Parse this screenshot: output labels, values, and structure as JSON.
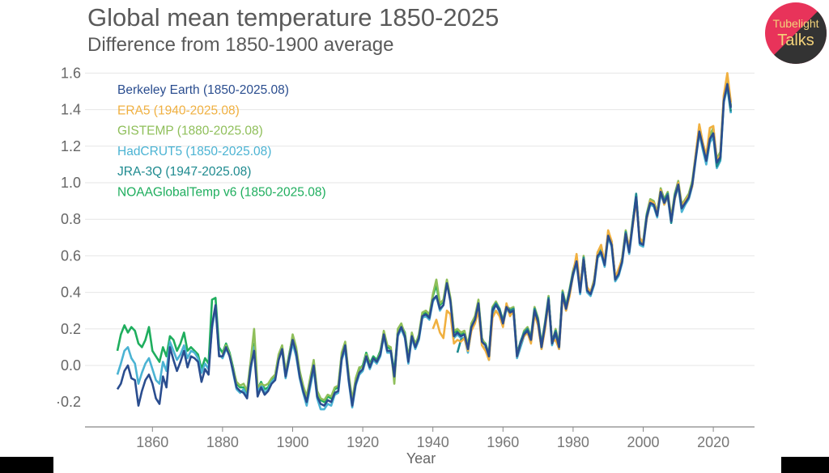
{
  "logo": {
    "line1": "Tubelight",
    "line2": "Talks",
    "pink": "#e8335a",
    "dark": "#333333",
    "text": "#f3d27a"
  },
  "chart_data": {
    "type": "line",
    "title": "Global mean temperature 1850-2025",
    "subtitle": "Difference from 1850-1900 average",
    "xlabel": "Year",
    "ylabel": "",
    "xlim": [
      1850,
      2025
    ],
    "ylim": [
      -0.2,
      1.6
    ],
    "xticks": [
      1860,
      1880,
      1900,
      1920,
      1940,
      1960,
      1980,
      2000,
      2020
    ],
    "xtick_labels": [
      "1860",
      "1880",
      "1900",
      "1920",
      "1940",
      "1960",
      "1980",
      "2000",
      "2020"
    ],
    "yticks": [
      1.6,
      1.4,
      1.2,
      1.0,
      0.8,
      0.6,
      0.4,
      0.2,
      0.0,
      -0.2
    ],
    "ytick_labels": [
      "1.6",
      "1.4",
      "1.2",
      "1.0",
      "0.8",
      "0.6",
      "0.4",
      "0.2",
      "0.0",
      "·0.2"
    ],
    "grid": true,
    "legend_placement": "top-left",
    "series": [
      {
        "name": "NOAAGlobalTemp v6 (1850-2025.08)",
        "color": "#1fae5e",
        "start": 1850,
        "values": [
          0.08,
          0.17,
          0.22,
          0.18,
          0.21,
          0.19,
          0.12,
          0.1,
          0.14,
          0.21,
          0.08,
          0.05,
          0.02,
          0.1,
          0.05,
          0.16,
          0.14,
          0.08,
          0.12,
          0.18,
          0.08,
          0.1,
          0.08,
          0.06,
          -0.02,
          0.04,
          0.01,
          0.36,
          0.37,
          0.1,
          0.07,
          0.12,
          0.07,
          -0.01,
          -0.1,
          -0.12,
          -0.12,
          -0.15,
          0.01,
          0.12,
          -0.13,
          -0.09,
          -0.13,
          -0.12,
          -0.08,
          -0.06,
          0.05,
          0.1,
          -0.04,
          0.06,
          0.16,
          0.09,
          -0.04,
          -0.12,
          -0.18,
          -0.08,
          0.02,
          -0.15,
          -0.19,
          -0.2,
          -0.17,
          -0.18,
          -0.13,
          -0.12,
          0.06,
          0.12,
          -0.06,
          -0.2,
          -0.08,
          -0.02,
          0.0,
          0.07,
          0.01,
          0.05,
          0.03,
          0.08,
          0.18,
          0.1,
          0.09,
          -0.04,
          0.19,
          0.22,
          0.18,
          0.04,
          0.17,
          0.12,
          0.16,
          0.28,
          0.29,
          0.27,
          0.38,
          0.44,
          0.33,
          0.35,
          0.46,
          0.36,
          0.18,
          0.19,
          0.17,
          0.18,
          0.1,
          0.22,
          0.26,
          0.35,
          0.14,
          0.12,
          0.06,
          0.31,
          0.34,
          0.31,
          0.24,
          0.33,
          0.3,
          0.31,
          0.06,
          0.13,
          0.18,
          0.2,
          0.15,
          0.31,
          0.25,
          0.11,
          0.23,
          0.37,
          0.13,
          0.19,
          0.11,
          0.4,
          0.32,
          0.41,
          0.51,
          0.58,
          0.41,
          0.59,
          0.42,
          0.4,
          0.46,
          0.61,
          0.63,
          0.56,
          0.72,
          0.67,
          0.48,
          0.51,
          0.58,
          0.73,
          0.63,
          0.78,
          0.93,
          0.68,
          0.67,
          0.82,
          0.9,
          0.89,
          0.83,
          0.96,
          0.9,
          0.94,
          0.8,
          0.93,
          1.0,
          0.87,
          0.9,
          0.93,
          1.0,
          1.15,
          1.29,
          1.21,
          1.13,
          1.25,
          1.28,
          1.12,
          1.15,
          1.46,
          1.55,
          1.42
        ]
      },
      {
        "name": "HadCRUT5 (1850-2025.08)",
        "color": "#4bb3d3",
        "start": 1850,
        "values": [
          -0.05,
          0.01,
          0.08,
          0.1,
          0.04,
          0.01,
          -0.1,
          -0.04,
          0.01,
          0.04,
          -0.02,
          -0.08,
          -0.1,
          0.02,
          -0.03,
          0.13,
          0.08,
          0.03,
          0.06,
          0.11,
          0.04,
          0.08,
          0.07,
          0.04,
          -0.04,
          0.01,
          -0.02,
          0.2,
          0.32,
          0.06,
          0.04,
          0.09,
          0.06,
          -0.04,
          -0.13,
          -0.15,
          -0.13,
          -0.17,
          -0.03,
          0.1,
          -0.15,
          -0.1,
          -0.15,
          -0.13,
          -0.09,
          -0.07,
          0.04,
          0.08,
          -0.07,
          0.03,
          0.12,
          0.05,
          -0.07,
          -0.15,
          -0.22,
          -0.12,
          -0.02,
          -0.18,
          -0.24,
          -0.24,
          -0.21,
          -0.22,
          -0.16,
          -0.15,
          0.03,
          0.09,
          -0.09,
          -0.23,
          -0.11,
          -0.05,
          -0.03,
          0.04,
          -0.02,
          0.03,
          0.01,
          0.05,
          0.16,
          0.07,
          0.07,
          -0.07,
          0.16,
          0.2,
          0.15,
          0.01,
          0.15,
          0.09,
          0.14,
          0.26,
          0.27,
          0.25,
          0.35,
          0.38,
          0.3,
          0.33,
          0.46,
          0.35,
          0.15,
          0.17,
          0.15,
          0.15,
          0.07,
          0.2,
          0.24,
          0.33,
          0.11,
          0.09,
          0.03,
          0.28,
          0.34,
          0.29,
          0.22,
          0.31,
          0.28,
          0.29,
          0.04,
          0.1,
          0.16,
          0.18,
          0.13,
          0.29,
          0.23,
          0.09,
          0.21,
          0.35,
          0.11,
          0.17,
          0.09,
          0.38,
          0.3,
          0.39,
          0.49,
          0.56,
          0.39,
          0.57,
          0.4,
          0.38,
          0.44,
          0.59,
          0.61,
          0.54,
          0.7,
          0.65,
          0.46,
          0.49,
          0.56,
          0.71,
          0.61,
          0.76,
          0.93,
          0.66,
          0.65,
          0.8,
          0.88,
          0.87,
          0.81,
          0.94,
          0.88,
          0.92,
          0.78,
          0.91,
          0.98,
          0.84,
          0.88,
          0.91,
          0.98,
          1.13,
          1.27,
          1.18,
          1.1,
          1.22,
          1.25,
          1.08,
          1.12,
          1.44,
          1.52,
          1.38
        ]
      },
      {
        "name": "GISTEMP (1880-2025.08)",
        "color": "#8fbf5a",
        "start": 1880,
        "values": [
          0.06,
          0.11,
          0.06,
          -0.02,
          -0.09,
          -0.11,
          -0.1,
          -0.14,
          0.02,
          0.2,
          -0.12,
          -0.1,
          -0.11,
          -0.1,
          -0.07,
          -0.05,
          0.06,
          0.11,
          -0.03,
          0.05,
          0.17,
          0.1,
          -0.03,
          -0.11,
          -0.17,
          -0.07,
          0.03,
          -0.14,
          -0.18,
          -0.19,
          -0.16,
          -0.17,
          -0.12,
          -0.11,
          0.07,
          0.13,
          -0.05,
          -0.19,
          -0.07,
          -0.01,
          -0.01,
          0.06,
          0.0,
          0.04,
          0.02,
          0.07,
          0.19,
          0.11,
          0.1,
          -0.1,
          0.2,
          0.23,
          0.17,
          0.03,
          0.18,
          0.11,
          0.17,
          0.29,
          0.3,
          0.28,
          0.39,
          0.47,
          0.34,
          0.36,
          0.47,
          0.37,
          0.19,
          0.2,
          0.18,
          0.19,
          0.11,
          0.23,
          0.27,
          0.36,
          0.15,
          0.11,
          0.07,
          0.32,
          0.35,
          0.31,
          0.25,
          0.32,
          0.31,
          0.32,
          0.07,
          0.12,
          0.19,
          0.21,
          0.16,
          0.32,
          0.26,
          0.12,
          0.24,
          0.38,
          0.12,
          0.2,
          0.12,
          0.41,
          0.33,
          0.42,
          0.52,
          0.59,
          0.42,
          0.6,
          0.41,
          0.4,
          0.47,
          0.62,
          0.64,
          0.57,
          0.73,
          0.68,
          0.47,
          0.52,
          0.59,
          0.74,
          0.64,
          0.79,
          0.92,
          0.69,
          0.68,
          0.83,
          0.91,
          0.9,
          0.84,
          0.97,
          0.91,
          0.95,
          0.81,
          0.94,
          1.01,
          0.88,
          0.91,
          0.94,
          1.01,
          1.16,
          1.31,
          1.22,
          1.14,
          1.26,
          1.3,
          1.13,
          1.17,
          1.48,
          1.57,
          1.42
        ]
      },
      {
        "name": "JRA-3Q (1947-2025.08)",
        "color": "#1d8a8f",
        "start": 1947,
        "values": [
          0.07,
          0.14,
          0.15,
          0.1,
          0.21,
          0.25,
          0.33,
          0.13,
          0.11,
          0.06,
          0.31,
          0.34,
          0.31,
          0.24,
          0.33,
          0.3,
          0.31,
          0.06,
          0.13,
          0.18,
          0.2,
          0.15,
          0.31,
          0.25,
          0.11,
          0.23,
          0.37,
          0.13,
          0.19,
          0.11,
          0.4,
          0.32,
          0.41,
          0.51,
          0.58,
          0.41,
          0.59,
          0.42,
          0.4,
          0.46,
          0.61,
          0.63,
          0.56,
          0.72,
          0.67,
          0.48,
          0.51,
          0.58,
          0.73,
          0.63,
          0.78,
          0.94,
          0.68,
          0.67,
          0.82,
          0.9,
          0.89,
          0.83,
          0.96,
          0.9,
          0.94,
          0.78,
          0.93,
          1.0,
          0.86,
          0.9,
          0.93,
          0.99,
          1.15,
          1.29,
          1.21,
          1.12,
          1.24,
          1.27,
          1.09,
          1.13,
          1.46,
          1.53,
          1.39
        ]
      },
      {
        "name": "ERA5 (1940-2025.08)",
        "color": "#f0b040",
        "start": 1940,
        "values": [
          0.2,
          0.25,
          0.18,
          0.15,
          0.3,
          0.28,
          0.12,
          0.14,
          0.13,
          0.15,
          0.08,
          0.19,
          0.23,
          0.3,
          0.11,
          0.08,
          0.03,
          0.26,
          0.3,
          0.27,
          0.21,
          0.34,
          0.27,
          0.3,
          0.05,
          0.12,
          0.16,
          0.18,
          0.12,
          0.28,
          0.22,
          0.09,
          0.2,
          0.35,
          0.13,
          0.14,
          0.09,
          0.38,
          0.3,
          0.38,
          0.5,
          0.61,
          0.43,
          0.58,
          0.43,
          0.4,
          0.46,
          0.62,
          0.66,
          0.56,
          0.74,
          0.68,
          0.48,
          0.53,
          0.58,
          0.72,
          0.65,
          0.76,
          0.9,
          0.7,
          0.67,
          0.8,
          0.9,
          0.89,
          0.83,
          0.96,
          0.88,
          0.93,
          0.8,
          0.91,
          1.0,
          0.87,
          0.9,
          0.93,
          0.98,
          1.16,
          1.32,
          1.22,
          1.15,
          1.3,
          1.31,
          1.12,
          1.15,
          1.48,
          1.6,
          1.44
        ]
      },
      {
        "name": "Berkeley Earth (1850-2025.08)",
        "color": "#2a4d8f",
        "start": 1850,
        "values": [
          -0.13,
          -0.1,
          -0.03,
          0.0,
          -0.07,
          -0.08,
          -0.22,
          -0.14,
          -0.08,
          -0.05,
          -0.1,
          -0.18,
          -0.21,
          -0.06,
          -0.12,
          0.1,
          0.03,
          -0.03,
          0.02,
          0.08,
          -0.01,
          0.05,
          0.04,
          0.02,
          -0.09,
          -0.02,
          -0.05,
          0.22,
          0.33,
          0.05,
          0.05,
          0.1,
          0.05,
          -0.03,
          -0.12,
          -0.14,
          -0.15,
          -0.18,
          -0.01,
          0.08,
          -0.17,
          -0.12,
          -0.16,
          -0.14,
          -0.1,
          -0.08,
          0.03,
          0.09,
          -0.06,
          0.04,
          0.14,
          0.07,
          -0.06,
          -0.14,
          -0.2,
          -0.1,
          0.0,
          -0.17,
          -0.21,
          -0.22,
          -0.19,
          -0.2,
          -0.15,
          -0.14,
          0.04,
          0.11,
          -0.08,
          -0.22,
          -0.1,
          -0.04,
          -0.02,
          0.05,
          -0.01,
          0.04,
          0.02,
          0.06,
          0.17,
          0.08,
          0.08,
          -0.06,
          0.17,
          0.21,
          0.16,
          0.02,
          0.16,
          0.1,
          0.15,
          0.27,
          0.28,
          0.26,
          0.36,
          0.38,
          0.31,
          0.33,
          0.45,
          0.35,
          0.16,
          0.18,
          0.16,
          0.17,
          0.09,
          0.21,
          0.25,
          0.34,
          0.13,
          0.11,
          0.05,
          0.3,
          0.33,
          0.3,
          0.23,
          0.32,
          0.29,
          0.3,
          0.05,
          0.12,
          0.17,
          0.19,
          0.14,
          0.3,
          0.24,
          0.1,
          0.22,
          0.36,
          0.12,
          0.18,
          0.1,
          0.39,
          0.31,
          0.4,
          0.5,
          0.57,
          0.4,
          0.58,
          0.41,
          0.39,
          0.45,
          0.6,
          0.62,
          0.55,
          0.71,
          0.66,
          0.47,
          0.5,
          0.57,
          0.72,
          0.62,
          0.77,
          0.92,
          0.67,
          0.66,
          0.81,
          0.89,
          0.88,
          0.82,
          0.95,
          0.89,
          0.93,
          0.79,
          0.92,
          0.99,
          0.86,
          0.89,
          0.92,
          0.99,
          1.14,
          1.28,
          1.2,
          1.12,
          1.24,
          1.27,
          1.11,
          1.14,
          1.45,
          1.54,
          1.41
        ]
      }
    ],
    "legend_order": [
      "Berkeley Earth (1850-2025.08)",
      "ERA5 (1940-2025.08)",
      "GISTEMP (1880-2025.08)",
      "HadCRUT5 (1850-2025.08)",
      "JRA-3Q (1947-2025.08)",
      "NOAAGlobalTemp v6 (1850-2025.08)"
    ]
  }
}
